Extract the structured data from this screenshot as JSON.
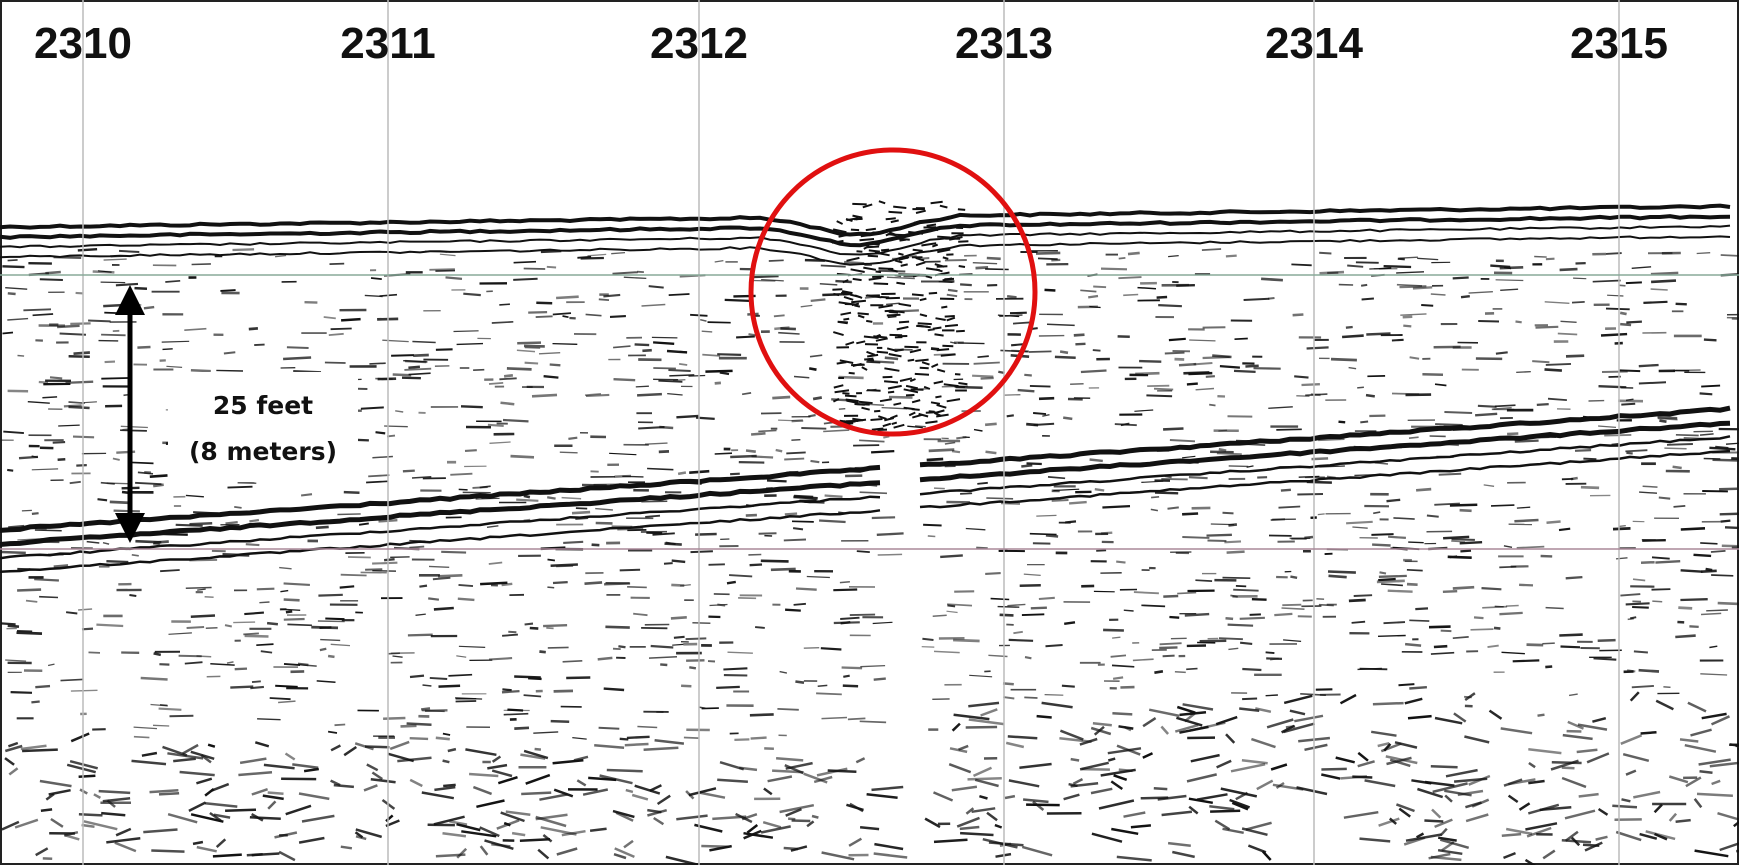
{
  "fix_marks": [
    "2310",
    "2311",
    "2312",
    "2313",
    "2314",
    "2315"
  ],
  "annotation": {
    "line1": "25 feet",
    "line2": "(8 meters)"
  }
}
